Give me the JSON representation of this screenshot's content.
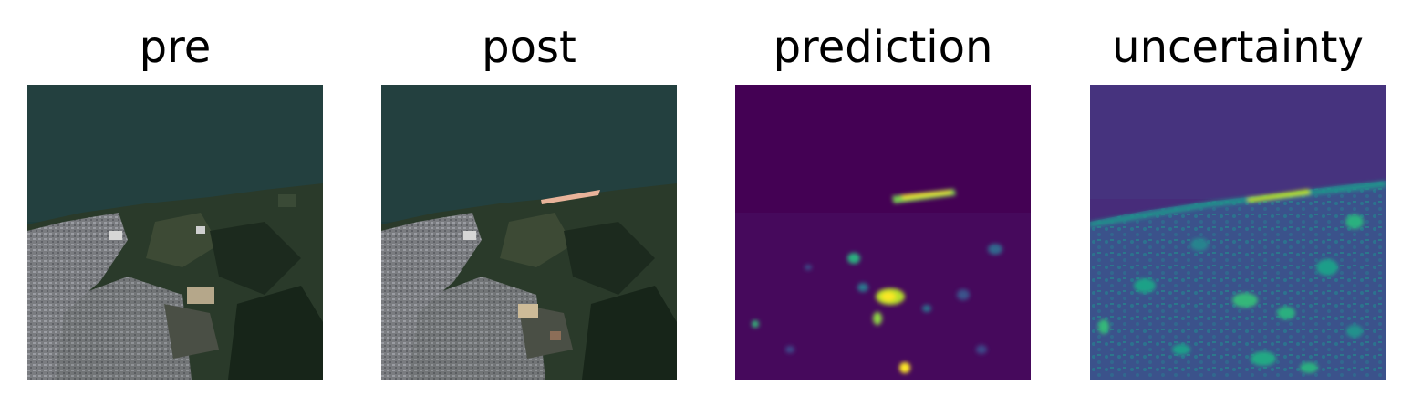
{
  "panels": [
    {
      "title": "pre",
      "kind": "satellite-rgb-image"
    },
    {
      "title": "post",
      "kind": "satellite-rgb-image"
    },
    {
      "title": "prediction",
      "kind": "heatmap-image",
      "colormap": "viridis"
    },
    {
      "title": "uncertainty",
      "kind": "heatmap-image",
      "colormap": "viridis"
    }
  ],
  "colors": {
    "sea": "#22403f",
    "viridis_low": "#440154",
    "viridis_mid": "#21918c",
    "viridis_high": "#fde725",
    "landslide_scar": "#e8b39a"
  }
}
